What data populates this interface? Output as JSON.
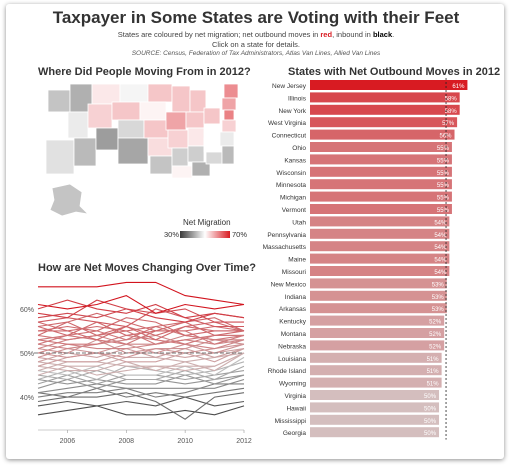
{
  "header": {
    "title": "Taxpayer in Some States are Voting with their Feet",
    "subtitle_pre": "States are coloured by net migration; net outbound moves in",
    "subtitle_red": "red",
    "subtitle_mid": ", inbound in",
    "subtitle_black": "black",
    "subtitle_post": ".",
    "instruction": "Click on a state for details.",
    "source": "SOURCE: Census, Federation of Tax Administrators, Atlas Van Lines, Allied Van Lines"
  },
  "map": {
    "title": "Where Did People Moving From in 2012?",
    "legend_title": "Net Migration",
    "legend_low": "30%",
    "legend_high": "70%",
    "color_low": "#3a3a3a",
    "color_high": "#d81b22"
  },
  "lines": {
    "title": "How are Net Moves Changing Over Time?"
  },
  "colors": {
    "accent": "#d81b22",
    "dark": "#333333"
  },
  "chart_data": [
    {
      "type": "bar",
      "title": "States with Net Outbound Moves in 2012",
      "categories": [
        "New Jersey",
        "Illinois",
        "New York",
        "West Virginia",
        "Connecticut",
        "Ohio",
        "Kansas",
        "Wisconsin",
        "Minnesota",
        "Michigan",
        "Vermont",
        "Utah",
        "Pennsylvania",
        "Massachusetts",
        "Maine",
        "Missouri",
        "New Mexico",
        "Indiana",
        "Arkansas",
        "Kentucky",
        "Montana",
        "Nebraska",
        "Louisiana",
        "Rhode Island",
        "Wyoming",
        "Virginia",
        "Hawaii",
        "Mississippi",
        "Georgia"
      ],
      "values": [
        61,
        58,
        58,
        57,
        56,
        55,
        55,
        55,
        55,
        55,
        55,
        54,
        54,
        54,
        54,
        54,
        53,
        53,
        53,
        52,
        52,
        52,
        51,
        51,
        51,
        50,
        50,
        50,
        50
      ],
      "value_suffix": "%",
      "reference_line": 50,
      "orientation": "horizontal"
    },
    {
      "type": "line",
      "title": "How are Net Moves Changing Over Time?",
      "x_ticks": [
        "2006",
        "2008",
        "2010",
        "2012"
      ],
      "y_ticks": [
        "40%",
        "50%",
        "60%"
      ],
      "ylim": [
        33,
        67
      ],
      "xlim": [
        2005,
        2012
      ],
      "reference_line": 50,
      "years": [
        2005,
        2006,
        2007,
        2008,
        2009,
        2010,
        2011,
        2012
      ],
      "series": [
        {
          "values": [
            65,
            65,
            65,
            66,
            66,
            63,
            62,
            61
          ]
        },
        {
          "values": [
            61,
            60,
            61,
            63,
            59,
            61,
            60,
            61
          ]
        },
        {
          "values": [
            60,
            62,
            60,
            59,
            61,
            58,
            59,
            58
          ]
        },
        {
          "values": [
            59,
            58,
            62,
            60,
            58,
            57,
            59,
            58
          ]
        },
        {
          "values": [
            58,
            59,
            58,
            60,
            59,
            60,
            57,
            57
          ]
        },
        {
          "values": [
            57,
            58,
            57,
            56,
            60,
            58,
            56,
            56
          ]
        },
        {
          "values": [
            56,
            57,
            59,
            57,
            55,
            57,
            58,
            55
          ]
        },
        {
          "values": [
            55,
            56,
            55,
            58,
            57,
            54,
            55,
            55
          ]
        },
        {
          "values": [
            57,
            55,
            56,
            55,
            56,
            57,
            54,
            55
          ]
        },
        {
          "values": [
            54,
            57,
            54,
            56,
            54,
            56,
            57,
            55
          ]
        },
        {
          "values": [
            56,
            54,
            57,
            54,
            55,
            55,
            56,
            55
          ]
        },
        {
          "values": [
            55,
            55,
            53,
            56,
            53,
            56,
            55,
            55
          ]
        },
        {
          "values": [
            53,
            54,
            55,
            53,
            56,
            54,
            53,
            54
          ]
        },
        {
          "values": [
            54,
            53,
            54,
            55,
            52,
            53,
            54,
            54
          ]
        },
        {
          "values": [
            52,
            54,
            53,
            52,
            55,
            55,
            52,
            54
          ]
        },
        {
          "values": [
            53,
            52,
            52,
            54,
            53,
            52,
            54,
            54
          ]
        },
        {
          "values": [
            51,
            53,
            54,
            52,
            52,
            54,
            53,
            53
          ]
        },
        {
          "values": [
            52,
            51,
            52,
            53,
            54,
            52,
            51,
            53
          ]
        },
        {
          "values": [
            50,
            52,
            51,
            51,
            52,
            53,
            52,
            53
          ]
        },
        {
          "values": [
            51,
            50,
            53,
            50,
            51,
            51,
            53,
            52
          ]
        },
        {
          "values": [
            49,
            51,
            50,
            52,
            50,
            52,
            50,
            52
          ]
        },
        {
          "values": [
            50,
            49,
            50,
            49,
            51,
            50,
            51,
            52
          ]
        },
        {
          "values": [
            48,
            50,
            49,
            51,
            49,
            51,
            49,
            51
          ]
        },
        {
          "values": [
            49,
            48,
            48,
            50,
            50,
            49,
            50,
            51
          ]
        },
        {
          "values": [
            47,
            49,
            50,
            48,
            48,
            50,
            48,
            51
          ]
        },
        {
          "values": [
            48,
            47,
            47,
            49,
            49,
            48,
            49,
            50
          ]
        },
        {
          "values": [
            46,
            48,
            48,
            47,
            47,
            47,
            47,
            50
          ]
        },
        {
          "values": [
            47,
            46,
            46,
            48,
            46,
            48,
            46,
            50
          ]
        },
        {
          "values": [
            45,
            47,
            45,
            46,
            47,
            46,
            47,
            50
          ]
        },
        {
          "values": [
            46,
            45,
            47,
            45,
            45,
            47,
            45,
            49
          ]
        },
        {
          "values": [
            44,
            46,
            44,
            47,
            46,
            45,
            46,
            48
          ]
        },
        {
          "values": [
            45,
            44,
            46,
            44,
            44,
            46,
            44,
            47
          ]
        },
        {
          "values": [
            43,
            45,
            43,
            45,
            45,
            44,
            45,
            46
          ]
        },
        {
          "values": [
            44,
            43,
            44,
            43,
            43,
            45,
            43,
            45
          ]
        },
        {
          "values": [
            42,
            44,
            42,
            44,
            44,
            43,
            44,
            45
          ]
        },
        {
          "values": [
            41,
            42,
            43,
            42,
            42,
            42,
            42,
            44
          ]
        },
        {
          "values": [
            40,
            41,
            41,
            42,
            40,
            41,
            43,
            43
          ]
        },
        {
          "values": [
            41,
            40,
            42,
            40,
            41,
            40,
            41,
            42
          ]
        },
        {
          "values": [
            39,
            40,
            40,
            41,
            39,
            35,
            40,
            41
          ]
        },
        {
          "values": [
            38,
            39,
            38,
            39,
            38,
            40,
            38,
            39
          ]
        },
        {
          "values": [
            36,
            37,
            38,
            36,
            36,
            37,
            36,
            38
          ]
        }
      ]
    }
  ]
}
